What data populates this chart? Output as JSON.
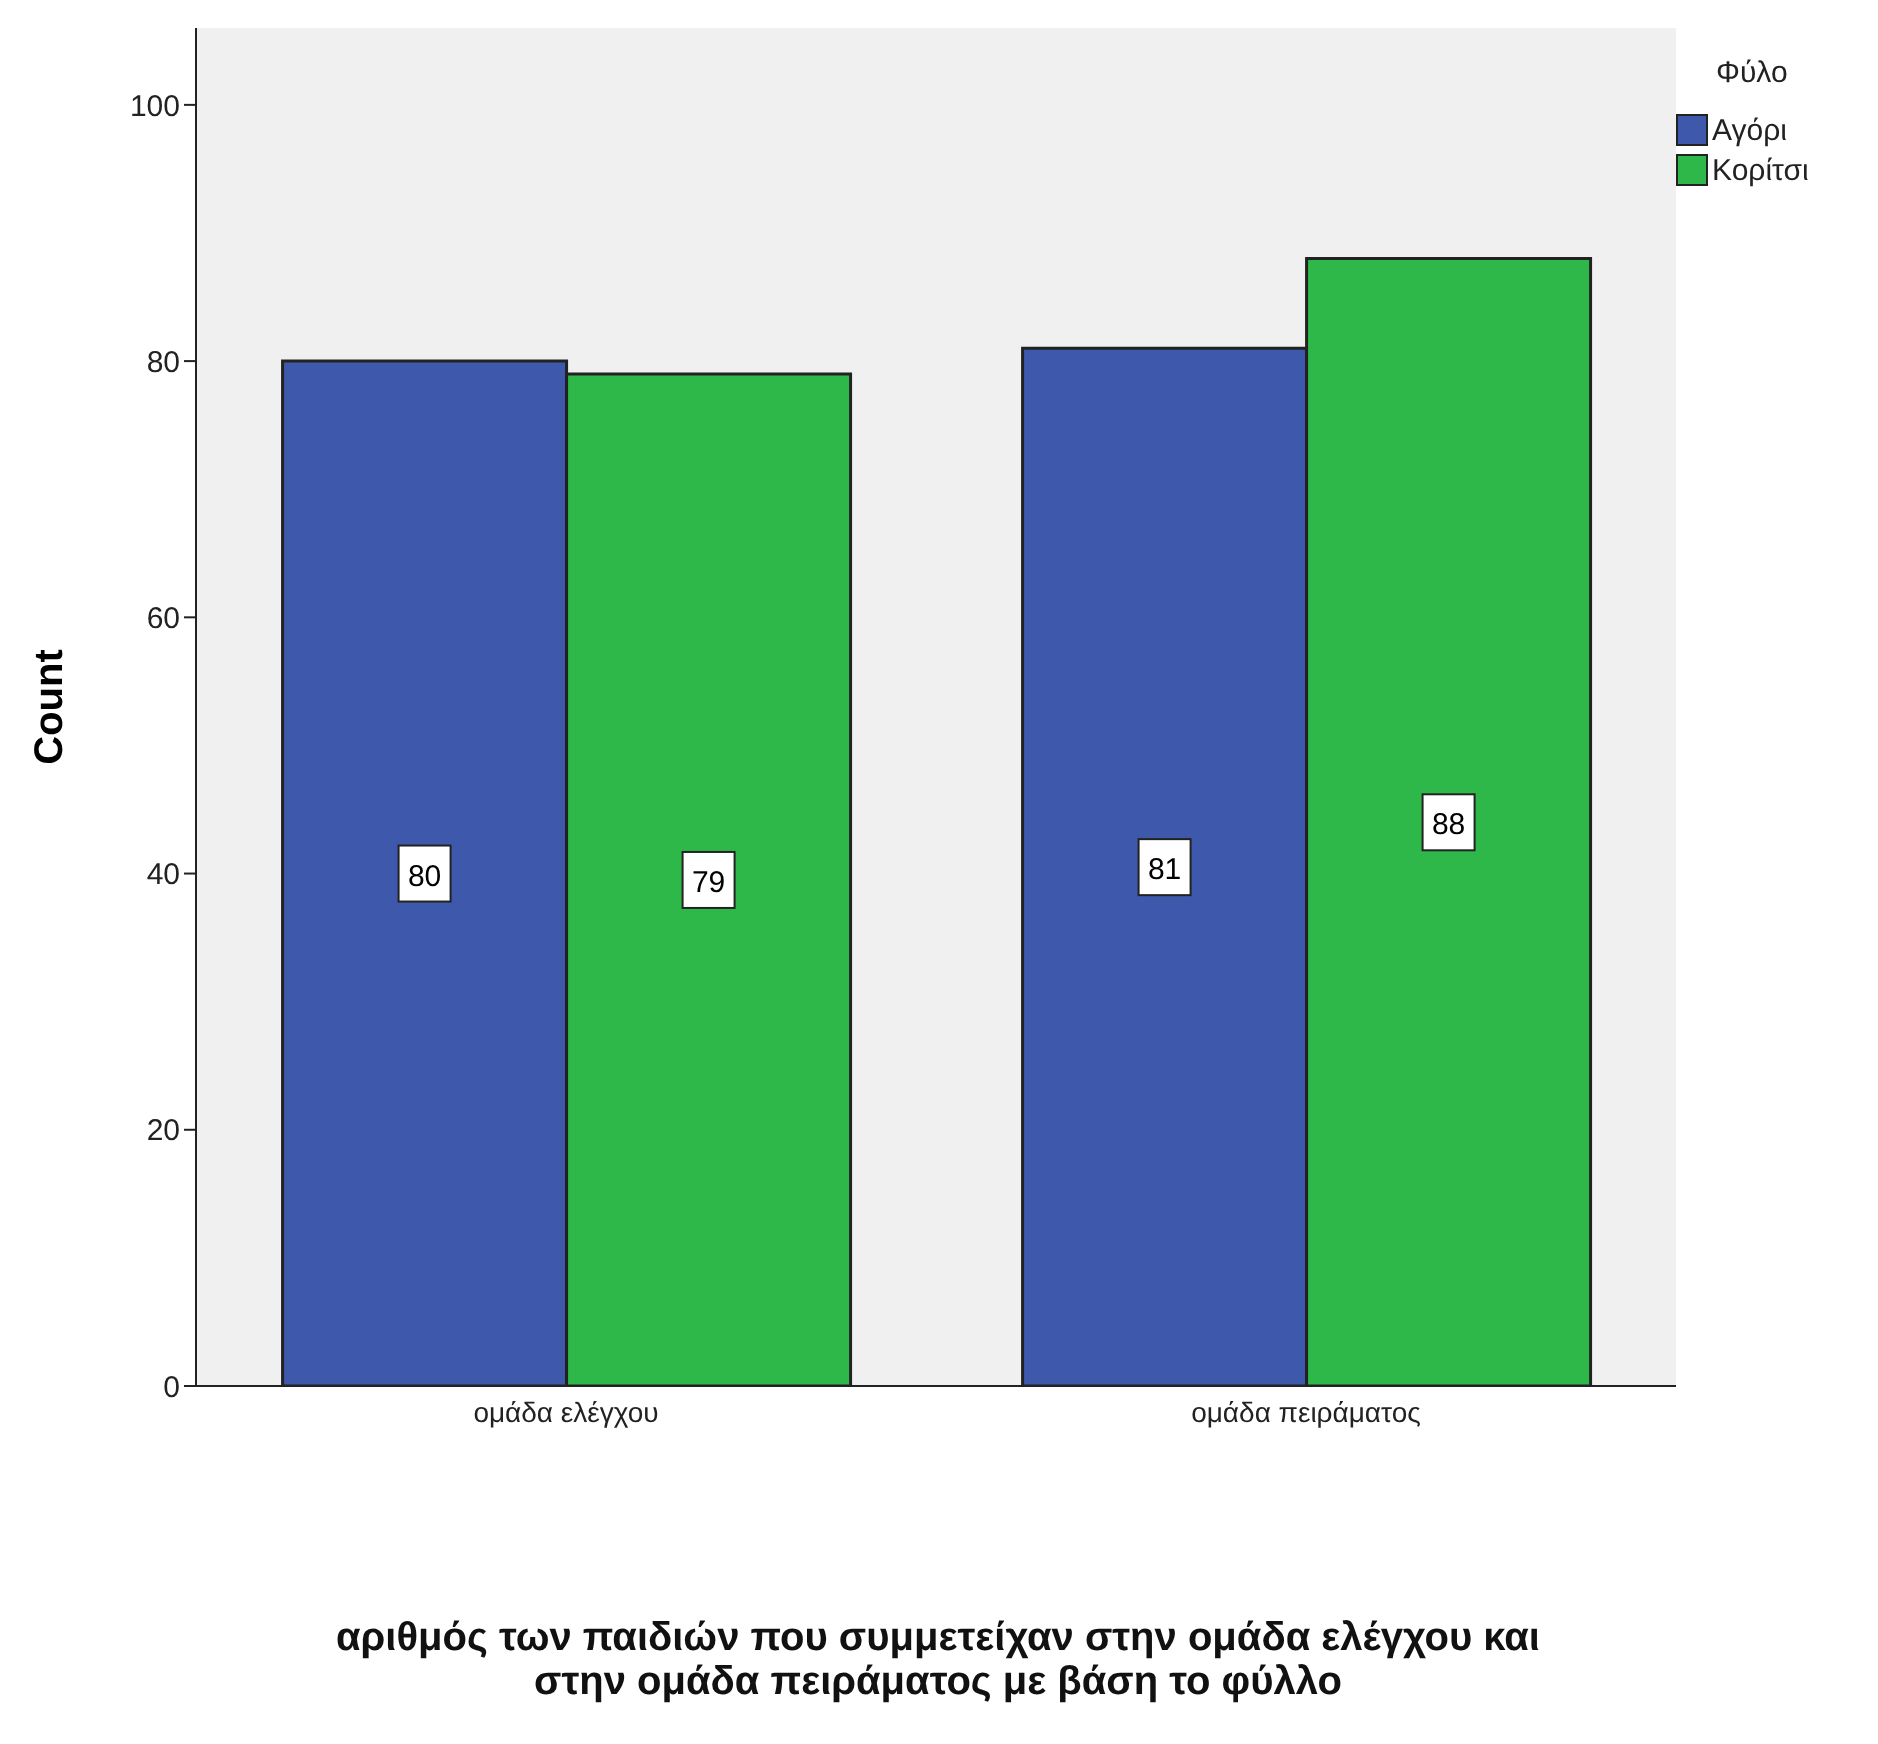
{
  "chart_data": {
    "type": "bar",
    "categories": [
      "ομάδα ελέγχου",
      "ομάδα πειράματος"
    ],
    "series": [
      {
        "name": "Αγόρι",
        "color": "#3e58ac",
        "values": [
          80,
          81
        ]
      },
      {
        "name": "Κορίτσι",
        "color": "#2fb84a",
        "values": [
          79,
          88
        ]
      }
    ],
    "ylabel": "Count",
    "xlabel": "αριθμός των παιδιών που συμμετείχαν στην ομάδα ελέγχου και στην ομάδα πειράματος με βάση το φύλλο",
    "legend_title": "Φύλο",
    "legend": "top right",
    "ylim": [
      0,
      106
    ],
    "yticks": [
      0,
      20,
      40,
      60,
      80,
      100
    ],
    "grid": false,
    "data_labels": true
  }
}
